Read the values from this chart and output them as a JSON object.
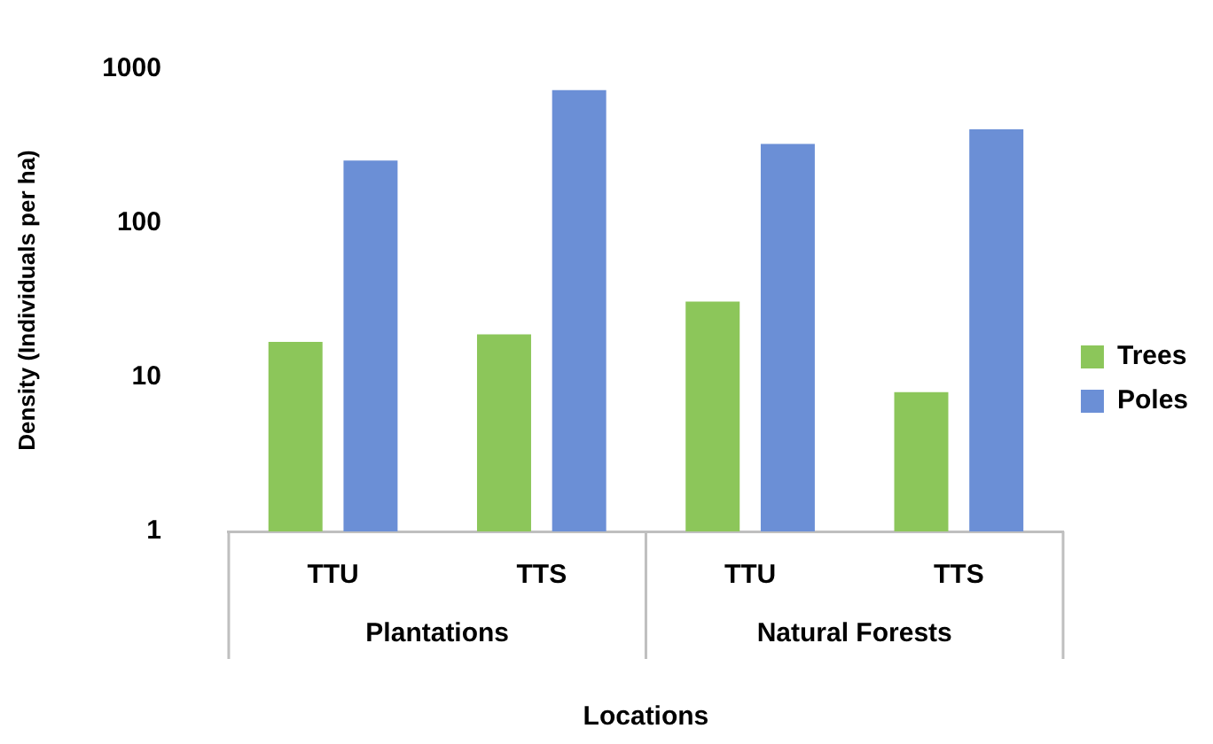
{
  "chart_data": {
    "type": "bar",
    "xlabel": "Locations",
    "ylabel": "Density (Individuals per ha)",
    "categories": [
      "TTU",
      "TTS",
      "TTU",
      "TTS"
    ],
    "series": [
      {
        "name": "Trees",
        "color": "#8cc65a",
        "values": [
          17,
          19,
          31,
          8
        ]
      },
      {
        "name": "Poles",
        "color": "#6b8fd6",
        "values": [
          255,
          730,
          327,
          406
        ]
      }
    ],
    "annotations": [
      "Plantations",
      "Natural Forests"
    ],
    "log": "y",
    "ylim": [
      1,
      1000
    ],
    "yticks": [
      1,
      10,
      100,
      1000
    ],
    "grid": false,
    "legend": "right"
  }
}
